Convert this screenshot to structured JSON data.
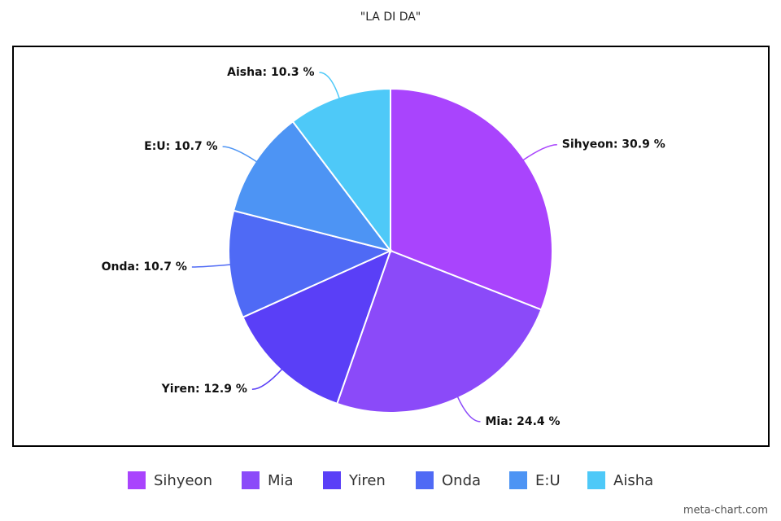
{
  "chart_data": {
    "type": "pie",
    "title": "\"LA DI DA\"",
    "categories": [
      "Sihyeon",
      "Mia",
      "Yiren",
      "Onda",
      "E:U",
      "Aisha"
    ],
    "values": [
      30.9,
      24.4,
      12.9,
      10.7,
      10.7,
      10.3
    ],
    "value_labels": [
      "Sihyeon: 30.9 %",
      "Mia: 24.4 %",
      "Yiren: 12.9 %",
      "Onda: 10.7 %",
      "E:U: 10.7 %",
      "Aisha: 10.3 %"
    ],
    "colors": [
      "#a944fd",
      "#8b4af9",
      "#5a3ff7",
      "#4f6af5",
      "#4d94f4",
      "#4ec9f8"
    ],
    "legend": "bottom"
  },
  "watermark": "meta-chart.com"
}
